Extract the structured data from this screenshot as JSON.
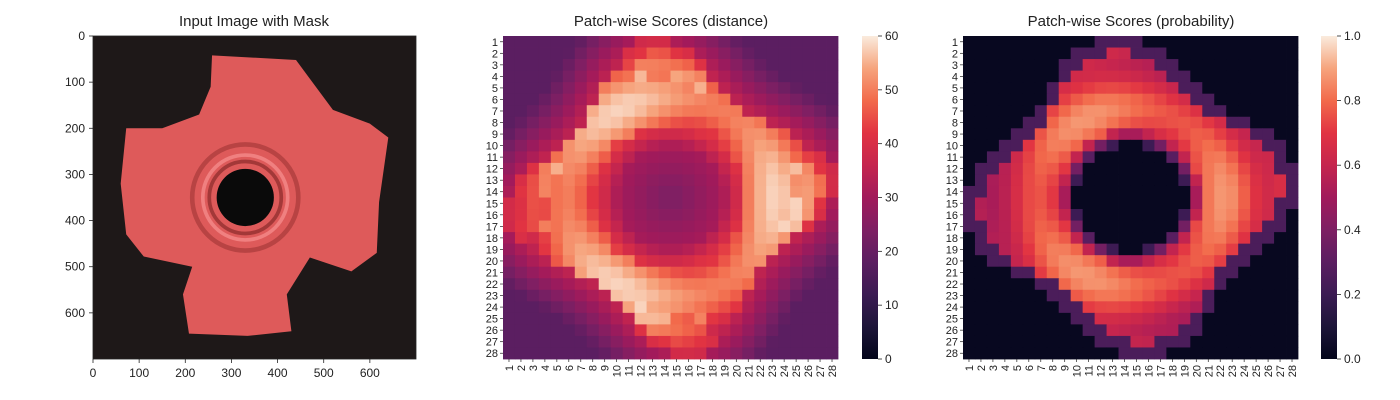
{
  "chart_data": [
    {
      "type": "image",
      "title": "Input Image with Mask",
      "xlim": [
        0,
        700
      ],
      "ylim": [
        700,
        0
      ],
      "xticks": [
        "0",
        "100",
        "200",
        "300",
        "400",
        "500",
        "600"
      ],
      "yticks": [
        "0",
        "100",
        "200",
        "300",
        "400",
        "500",
        "600"
      ],
      "xtick_values": [
        0,
        100,
        200,
        300,
        400,
        500,
        600
      ],
      "ytick_values": [
        0,
        100,
        200,
        300,
        400,
        500,
        600
      ],
      "background_color": "#1e1818",
      "object_color": "#de5a5a",
      "hole_color": "#0a0a0a"
    },
    {
      "type": "heatmap",
      "title": "Patch-wise Scores (distance)",
      "rows": [
        "1",
        "2",
        "3",
        "4",
        "5",
        "6",
        "7",
        "8",
        "9",
        "10",
        "11",
        "12",
        "13",
        "14",
        "15",
        "16",
        "17",
        "18",
        "19",
        "20",
        "21",
        "22",
        "23",
        "24",
        "25",
        "26",
        "27",
        "28"
      ],
      "cols": [
        "1",
        "2",
        "3",
        "4",
        "5",
        "6",
        "7",
        "8",
        "9",
        "10",
        "11",
        "12",
        "13",
        "14",
        "15",
        "16",
        "17",
        "18",
        "19",
        "20",
        "21",
        "22",
        "23",
        "24",
        "25",
        "26",
        "27",
        "28"
      ],
      "vmin": 0,
      "vmax": 60,
      "colorbar_ticks": [
        "0",
        "10",
        "20",
        "30",
        "40",
        "50",
        "60"
      ],
      "colorbar_tick_values": [
        0,
        10,
        20,
        30,
        40,
        50,
        60
      ],
      "model": "distance",
      "note": "values approximated: high ring (~48-58) around a low center (~22-30), moderate edges (~25-35)"
    },
    {
      "type": "heatmap",
      "title": "Patch-wise Scores (probability)",
      "rows": [
        "1",
        "2",
        "3",
        "4",
        "5",
        "6",
        "7",
        "8",
        "9",
        "10",
        "11",
        "12",
        "13",
        "14",
        "15",
        "16",
        "17",
        "18",
        "19",
        "20",
        "21",
        "22",
        "23",
        "24",
        "25",
        "26",
        "27",
        "28"
      ],
      "cols": [
        "1",
        "2",
        "3",
        "4",
        "5",
        "6",
        "7",
        "8",
        "9",
        "10",
        "11",
        "12",
        "13",
        "14",
        "15",
        "16",
        "17",
        "18",
        "19",
        "20",
        "21",
        "22",
        "23",
        "24",
        "25",
        "26",
        "27",
        "28"
      ],
      "vmin": 0.0,
      "vmax": 1.0,
      "colorbar_ticks": [
        "0.0",
        "0.2",
        "0.4",
        "0.6",
        "0.8",
        "1.0"
      ],
      "colorbar_tick_values": [
        0,
        0.2,
        0.4,
        0.6,
        0.8,
        1.0
      ],
      "model": "probability",
      "note": "values approximated: ring ~0.65-0.95, center and outer border ~0.0-0.1"
    }
  ]
}
